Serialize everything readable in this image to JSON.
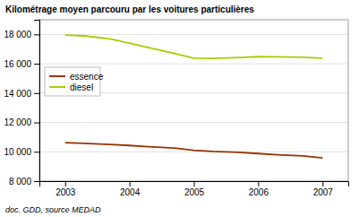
{
  "chart_data": {
    "type": "line",
    "title": "Kilométrage moyen parcouru par les voitures particulières",
    "subtitle": "doc. GDD, source MEDAD",
    "x": [
      2003,
      2003.3,
      2003.7,
      2004,
      2004.3,
      2004.7,
      2005,
      2005.3,
      2005.7,
      2006,
      2006.3,
      2006.7,
      2007
    ],
    "series": [
      {
        "name": "essence",
        "color": "#993300",
        "values": [
          10620,
          10580,
          10500,
          10430,
          10350,
          10250,
          10100,
          10020,
          9960,
          9880,
          9800,
          9720,
          9580
        ]
      },
      {
        "name": "diesel",
        "color": "#aacc00",
        "values": [
          17950,
          17900,
          17700,
          17400,
          17100,
          16700,
          16380,
          16360,
          16420,
          16480,
          16470,
          16440,
          16380
        ]
      }
    ],
    "xlim": [
      2002.6,
      2007.4
    ],
    "xticks": [
      2003,
      2004,
      2005,
      2006,
      2007
    ],
    "ylim": [
      8000,
      19000
    ],
    "yticks": [
      {
        "value": 8000,
        "label": "8 000"
      },
      {
        "value": 10000,
        "label": "10 000"
      },
      {
        "value": 12000,
        "label": "12 000"
      },
      {
        "value": 14000,
        "label": "14 000"
      },
      {
        "value": 16000,
        "label": "16 000"
      },
      {
        "value": 18000,
        "label": "18 000"
      }
    ],
    "grid": true,
    "legend": "upper left"
  }
}
